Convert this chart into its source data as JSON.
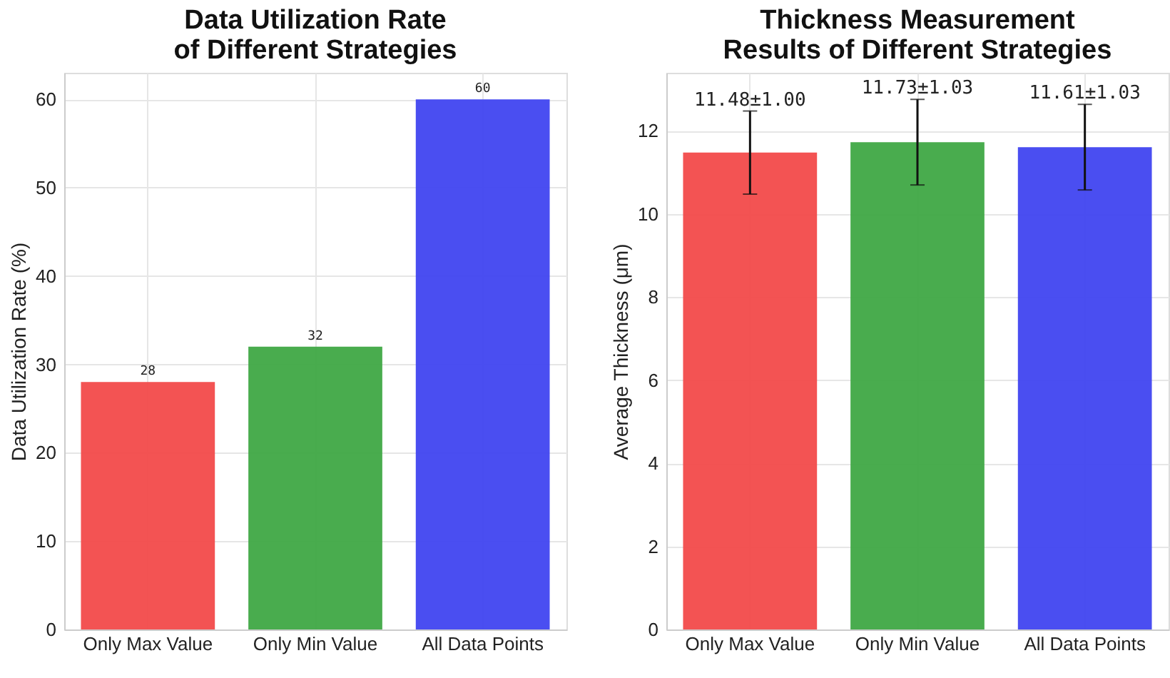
{
  "chart_data": [
    {
      "type": "bar",
      "title": "Data Utilization Rate\nof Different Strategies",
      "ylabel": "Data Utilization Rate (%)",
      "categories": [
        "Only Max Value",
        "Only Min Value",
        "All Data Points"
      ],
      "values": [
        28,
        32,
        60
      ],
      "colors": [
        "#f24a4a",
        "#3fa845",
        "#4045f0"
      ],
      "ylim": [
        0,
        63
      ],
      "yticks": [
        0,
        10,
        20,
        30,
        40,
        50,
        60
      ],
      "grid": true,
      "data_labels": true
    },
    {
      "type": "bar",
      "title": "Thickness Measurement\nResults of Different Strategies",
      "ylabel": "Average Thickness (μm)",
      "categories": [
        "Only Max Value",
        "Only Min Value",
        "All Data Points"
      ],
      "values": [
        11.48,
        11.73,
        11.61
      ],
      "errors": [
        1.0,
        1.03,
        1.03
      ],
      "value_labels": [
        "11.48±1.00",
        "11.73±1.03",
        "11.61±1.03"
      ],
      "colors": [
        "#f24a4a",
        "#3fa845",
        "#4045f0"
      ],
      "ylim": [
        0,
        13.4
      ],
      "yticks": [
        0,
        2,
        4,
        6,
        8,
        10,
        12
      ],
      "grid": true
    }
  ]
}
